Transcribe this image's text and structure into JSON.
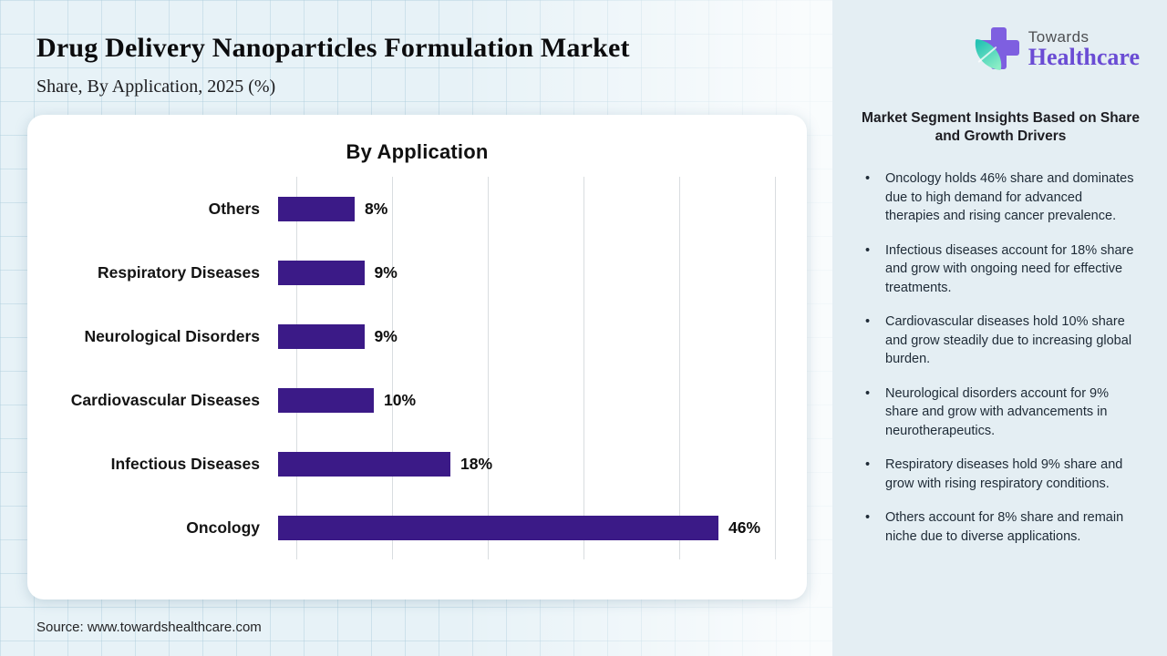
{
  "header": {
    "title": "Drug Delivery Nanoparticles Formulation Market",
    "subtitle": "Share, By Application, 2025 (%)"
  },
  "logo": {
    "name_top": "Towards",
    "name_bottom": "Healthcare"
  },
  "chart_data": {
    "type": "bar",
    "orientation": "horizontal",
    "title": "By Application",
    "categories": [
      "Others",
      "Respiratory Diseases",
      "Neurological Disorders",
      "Cardiovascular Diseases",
      "Infectious Diseases",
      "Oncology"
    ],
    "values": [
      8,
      9,
      9,
      10,
      18,
      46
    ],
    "value_suffix": "%",
    "xlim": [
      0,
      50
    ],
    "gridline_interval": 10,
    "grid": true,
    "legend_position": "none",
    "bar_color": "#3b1a87"
  },
  "sidebar": {
    "heading": "Market Segment Insights Based on Share and Growth Drivers",
    "bullets": [
      "Oncology holds 46% share and dominates due to high demand for advanced therapies and rising cancer prevalence.",
      "Infectious diseases account for 18% share and grow with ongoing need for effective treatments.",
      "Cardiovascular diseases hold 10% share and grow steadily due to increasing global burden.",
      "Neurological disorders account for 9% share and grow with advancements in neurotherapeutics.",
      "Respiratory diseases hold 9% share and grow with rising respiratory conditions.",
      "Others account for 8% share and remain niche due to diverse applications."
    ]
  },
  "footer": {
    "source": "Source: www.towardshealthcare.com"
  }
}
